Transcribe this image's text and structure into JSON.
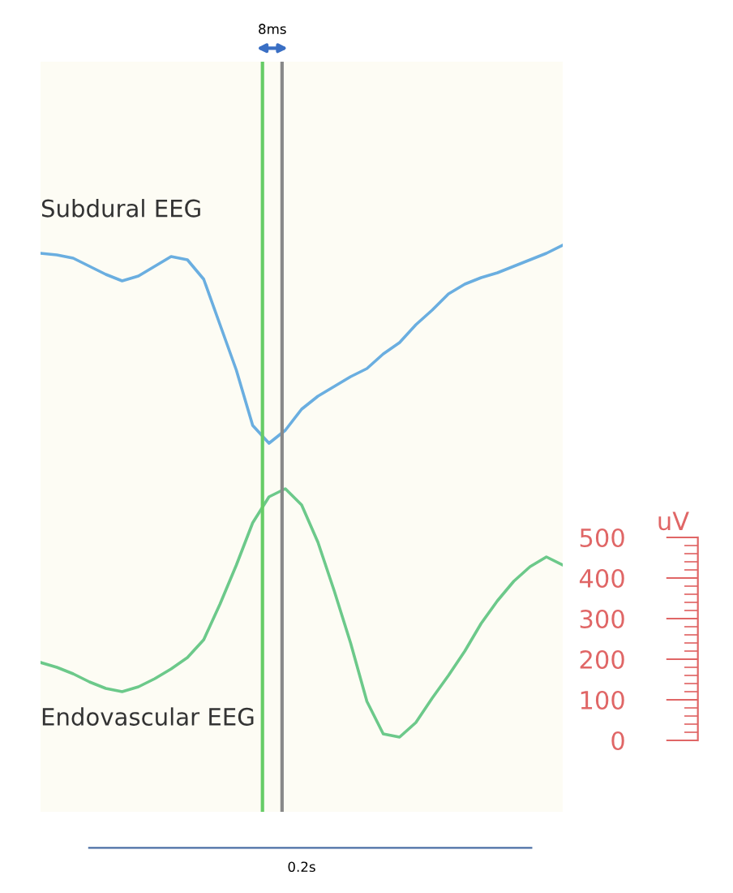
{
  "chart_data": {
    "type": "line",
    "ylabel": "uV",
    "xlabel": "0.2s",
    "categories": [
      null,
      null,
      null,
      null,
      null,
      null,
      null,
      null,
      null,
      null,
      null,
      null,
      null,
      null,
      null,
      null,
      null,
      null,
      null,
      null,
      null,
      null,
      null,
      null,
      null,
      null,
      null,
      null,
      null,
      null,
      null,
      null,
      null
    ],
    "ylim": [
      -176,
      1672
    ],
    "yticks": [
      0,
      100,
      200,
      300,
      400,
      500
    ],
    "tick_labels": "y",
    "marker": "none",
    "line_style": "solid",
    "series": [
      {
        "name": "Subdural EEG",
        "color": "#6aaee0",
        "values": [
          1200,
          1196,
          1188,
          1168,
          1148,
          1132,
          1144,
          1168,
          1192,
          1184,
          1136,
          1024,
          912,
          776,
          732,
          764,
          816,
          848,
          872,
          896,
          916,
          952,
          980,
          1024,
          1060,
          1100,
          1124,
          1140,
          1152,
          1168,
          1184,
          1200,
          1220
        ]
      },
      {
        "name": "Endovascular EEG",
        "color": "#6cc98a",
        "values": [
          192,
          180,
          164,
          144,
          128,
          120,
          132,
          152,
          176,
          204,
          248,
          336,
          432,
          536,
          600,
          620,
          580,
          488,
          368,
          240,
          96,
          16,
          8,
          44,
          104,
          160,
          220,
          288,
          344,
          392,
          428,
          452,
          432
        ]
      }
    ],
    "annotations": [
      "8ms"
    ]
  }
}
